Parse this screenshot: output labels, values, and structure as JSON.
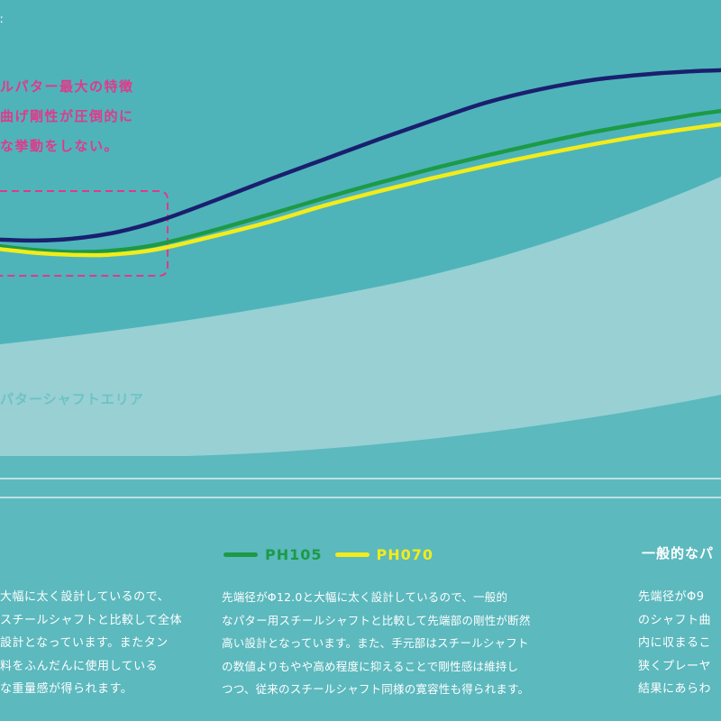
{
  "chart_data": {
    "type": "line",
    "series": [
      {
        "name": "",
        "color": "#1a1f6e",
        "values": [
          [
            0,
            0.2
          ],
          [
            40,
            0.1
          ],
          [
            80,
            0.3
          ],
          [
            130,
            1.0
          ],
          [
            180,
            2.3
          ],
          [
            240,
            4.4
          ],
          [
            300,
            6.6
          ],
          [
            360,
            8.7
          ],
          [
            420,
            10.8
          ],
          [
            480,
            12.8
          ],
          [
            540,
            14.7
          ],
          [
            600,
            16.1
          ],
          [
            660,
            17.1
          ],
          [
            720,
            17.7
          ],
          [
            770,
            18.0
          ],
          [
            800,
            18.1
          ]
        ]
      },
      {
        "name": "PH105",
        "color": "#1d9a46",
        "values": [
          [
            0,
            -0.5
          ],
          [
            40,
            -0.9
          ],
          [
            80,
            -1.1
          ],
          [
            120,
            -1.0
          ],
          [
            170,
            -0.4
          ],
          [
            230,
            1.0
          ],
          [
            300,
            2.9
          ],
          [
            360,
            4.6
          ],
          [
            420,
            6.2
          ],
          [
            480,
            7.7
          ],
          [
            540,
            9.1
          ],
          [
            600,
            10.4
          ],
          [
            660,
            11.6
          ],
          [
            720,
            12.6
          ],
          [
            770,
            13.4
          ],
          [
            800,
            13.8
          ]
        ]
      },
      {
        "name": "PH070",
        "color": "#f2ec1b",
        "values": [
          [
            0,
            -0.8
          ],
          [
            40,
            -1.2
          ],
          [
            80,
            -1.4
          ],
          [
            120,
            -1.4
          ],
          [
            170,
            -0.9
          ],
          [
            230,
            0.4
          ],
          [
            300,
            2.1
          ],
          [
            360,
            3.8
          ],
          [
            420,
            5.3
          ],
          [
            480,
            6.7
          ],
          [
            540,
            8.0
          ],
          [
            600,
            9.2
          ],
          [
            660,
            10.3
          ],
          [
            720,
            11.3
          ],
          [
            770,
            12.0
          ],
          [
            800,
            12.4
          ]
        ]
      }
    ],
    "shaded_area_label": "パターシャフトエリア",
    "annotation": [
      "ルパター最大の特徴",
      "曲げ剛性が圧倒的に",
      "な挙動をしない。"
    ]
  },
  "top_mark": "ː",
  "legend": {
    "items": [
      {
        "label": "PH105",
        "color": "#1d9a46",
        "text_color": "#1d9a46"
      },
      {
        "label": "PH070",
        "color": "#f2ec1b",
        "text_color": "#f2ec1b"
      }
    ]
  },
  "right_heading": "一般的なパ",
  "paragraphs": {
    "left": [
      "大幅に太く設計しているので、",
      "スチールシャフトと比較して全体",
      "設計となっています。またタン",
      "料をふんだんに使用している",
      "な重量感が得られます。"
    ],
    "center": [
      "先端径がΦ12.0と大幅に太く設計しているので、一般的",
      "なパター用スチールシャフトと比較して先端部の剛性が断然",
      "高い設計となっています。また、手元部はスチールシャフト",
      "の数値よりもやや高め程度に抑えることで剛性感は維持し",
      "つつ、従来のスチールシャフト同様の寛容性も得られます。"
    ],
    "right": [
      "先端径がΦ9",
      "のシャフト曲",
      "内に収まるこ",
      "狭くプレーヤ",
      "結果にあらわ"
    ]
  }
}
